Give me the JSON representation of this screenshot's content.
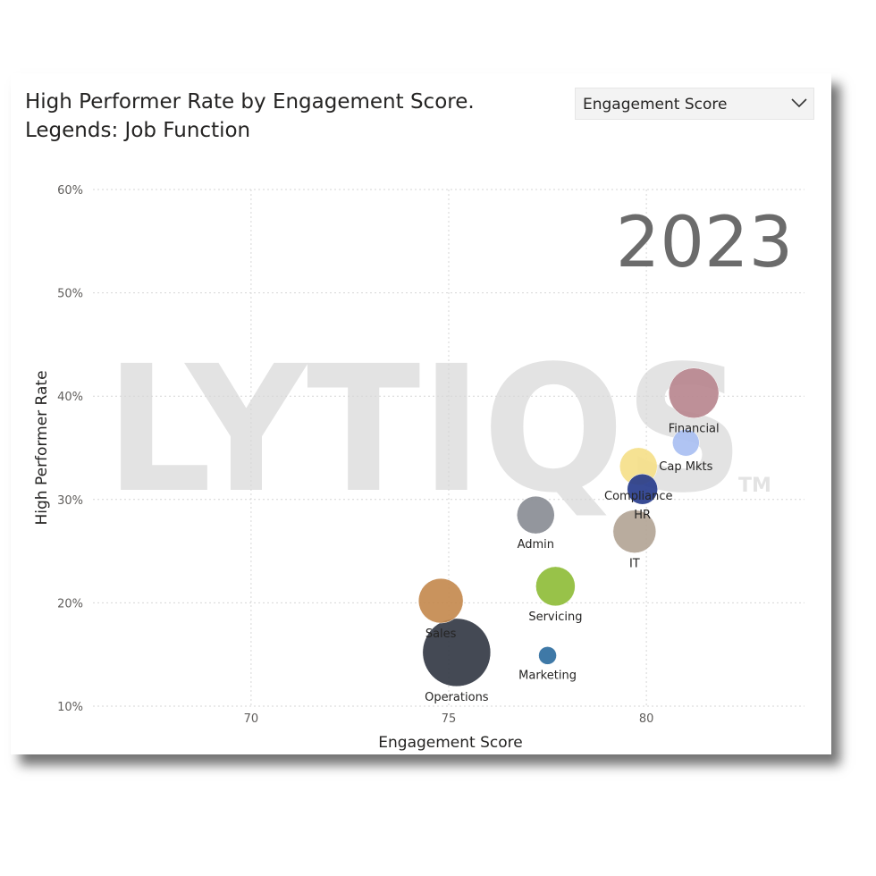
{
  "title_line1": "High Performer Rate by Engagement Score.",
  "title_line2": "Legends: Job Function",
  "dropdown": {
    "selected": "Engagement Score",
    "icon": "chevron-down-icon"
  },
  "watermark": {
    "text": "LYTIQS",
    "tm": "TM",
    "color": "#e3e3e3"
  },
  "year_label": "2023",
  "chart_data": {
    "type": "scatter",
    "title": "High Performer Rate by Engagement Score.",
    "xlabel": "Engagement Score",
    "ylabel": "High Performer Rate",
    "xlim": [
      66,
      84
    ],
    "ylim": [
      10,
      60
    ],
    "x_ticks": [
      70,
      75,
      80
    ],
    "x_tick_labels": [
      "70",
      "75",
      "80"
    ],
    "y_ticks": [
      10,
      20,
      30,
      40,
      50,
      60
    ],
    "y_tick_labels": [
      "10%",
      "20%",
      "30%",
      "40%",
      "50%",
      "60%"
    ],
    "grid": true,
    "points": [
      {
        "label": "Financial",
        "x": 81.2,
        "y": 40.3,
        "size": 28,
        "color": "#b9878f"
      },
      {
        "label": "Cap Mkts",
        "x": 81.0,
        "y": 35.5,
        "size": 15,
        "color": "#a9bff2"
      },
      {
        "label": "Compliance",
        "x": 79.8,
        "y": 33.2,
        "size": 21,
        "color": "#f5e08a"
      },
      {
        "label": "HR",
        "x": 79.9,
        "y": 31.0,
        "size": 17,
        "color": "#273c8c"
      },
      {
        "label": "IT",
        "x": 79.7,
        "y": 26.9,
        "size": 24,
        "color": "#b3a596"
      },
      {
        "label": "Admin",
        "x": 77.2,
        "y": 28.5,
        "size": 21,
        "color": "#8a8d95"
      },
      {
        "label": "Servicing",
        "x": 77.7,
        "y": 21.6,
        "size": 22,
        "color": "#8fbd3a"
      },
      {
        "label": "Sales",
        "x": 74.8,
        "y": 20.2,
        "size": 25,
        "color": "#c48a4f"
      },
      {
        "label": "Operations",
        "x": 75.2,
        "y": 15.2,
        "size": 38,
        "color": "#343a45"
      },
      {
        "label": "Marketing",
        "x": 77.5,
        "y": 14.9,
        "size": 10,
        "color": "#2f6ea0"
      }
    ]
  }
}
